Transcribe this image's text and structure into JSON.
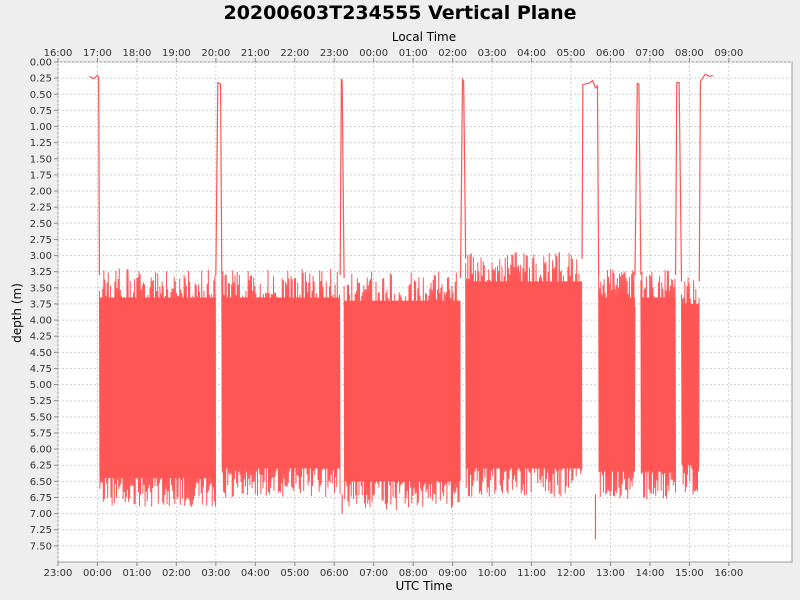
{
  "chart_data": {
    "type": "line",
    "title": "20200603T234555 Vertical Plane",
    "top_axis_label": "Local Time",
    "xlabel": "UTC Time",
    "ylabel": "depth (m)",
    "y_inverted": true,
    "ylim": [
      0,
      7.75
    ],
    "y_ticks": [
      0.0,
      0.25,
      0.5,
      0.75,
      1.0,
      1.25,
      1.5,
      1.75,
      2.0,
      2.25,
      2.5,
      2.75,
      3.0,
      3.25,
      3.5,
      3.75,
      4.0,
      4.25,
      4.5,
      4.75,
      5.0,
      5.25,
      5.5,
      5.75,
      6.0,
      6.25,
      6.5,
      6.75,
      7.0,
      7.25,
      7.5
    ],
    "y_tick_labels": [
      "0.00",
      "0.25",
      "0.50",
      "0.75",
      "1.00",
      "1.25",
      "1.50",
      "1.75",
      "2.00",
      "2.25",
      "2.50",
      "2.75",
      "3.00",
      "3.25",
      "3.50",
      "3.75",
      "4.00",
      "4.25",
      "4.50",
      "4.75",
      "5.00",
      "5.25",
      "5.50",
      "5.75",
      "6.00",
      "6.25",
      "6.50",
      "6.75",
      "7.00",
      "7.25",
      "7.50"
    ],
    "xlim_hours": [
      -1.0,
      17.6
    ],
    "x_ticks_hours": [
      -1,
      0,
      1,
      2,
      3,
      4,
      5,
      6,
      7,
      8,
      9,
      10,
      11,
      12,
      13,
      14,
      15,
      16
    ],
    "x_tick_labels": [
      "23:00",
      "00:00",
      "01:00",
      "02:00",
      "03:00",
      "04:00",
      "05:00",
      "06:00",
      "07:00",
      "08:00",
      "09:00",
      "10:00",
      "11:00",
      "12:00",
      "13:00",
      "14:00",
      "15:00",
      "16:00"
    ],
    "top_tick_labels": [
      "16:00",
      "17:00",
      "18:00",
      "19:00",
      "20:00",
      "21:00",
      "22:00",
      "23:00",
      "00:00",
      "01:00",
      "02:00",
      "03:00",
      "04:00",
      "05:00",
      "06:00",
      "07:00",
      "08:00",
      "09:00"
    ],
    "grid": true,
    "series_color": "#ff5555",
    "surface_points": [
      [
        -0.2,
        0.22
      ],
      [
        -0.1,
        0.26
      ],
      [
        0.0,
        0.21
      ],
      [
        0.03,
        0.24
      ],
      [
        3.05,
        0.32
      ],
      [
        3.12,
        0.34
      ],
      [
        6.18,
        0.27
      ],
      [
        6.2,
        0.28
      ],
      [
        9.25,
        0.27
      ],
      [
        9.28,
        0.3
      ],
      [
        12.3,
        0.35
      ],
      [
        12.45,
        0.33
      ],
      [
        12.55,
        0.29
      ],
      [
        12.62,
        0.4
      ],
      [
        12.67,
        0.37
      ],
      [
        13.68,
        0.33
      ],
      [
        13.72,
        0.34
      ],
      [
        14.68,
        0.32
      ],
      [
        14.74,
        0.32
      ],
      [
        15.28,
        0.3
      ],
      [
        15.4,
        0.19
      ],
      [
        15.5,
        0.22
      ],
      [
        15.6,
        0.21
      ]
    ],
    "dive_segments": [
      {
        "start": 0.05,
        "end": 3.0,
        "min_depth": 3.2,
        "max_depth": 6.9
      },
      {
        "start": 3.15,
        "end": 6.15,
        "min_depth": 3.2,
        "max_depth": 6.75
      },
      {
        "start": 6.25,
        "end": 9.2,
        "min_depth": 3.25,
        "max_depth": 6.95
      },
      {
        "start": 9.33,
        "end": 12.28,
        "min_depth": 2.95,
        "max_depth": 6.75
      },
      {
        "start": 12.7,
        "end": 13.62,
        "min_depth": 3.2,
        "max_depth": 6.8
      },
      {
        "start": 13.77,
        "end": 14.65,
        "min_depth": 3.2,
        "max_depth": 6.8
      },
      {
        "start": 14.8,
        "end": 15.25,
        "min_depth": 3.3,
        "max_depth": 6.7
      }
    ],
    "notable_points": [
      [
        12.62,
        7.4
      ],
      [
        6.2,
        7.0
      ],
      [
        11.7,
        2.95
      ]
    ]
  }
}
